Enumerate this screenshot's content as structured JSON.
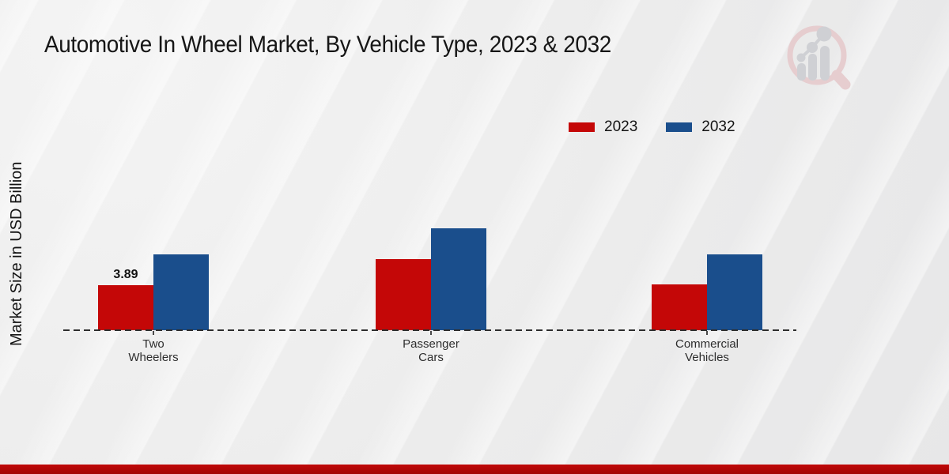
{
  "colors": {
    "background": "#ececec",
    "accent_red": "#c40707",
    "accent_blue": "#1a4e8c"
  },
  "footer": {
    "band_color": "#c00808"
  },
  "watermark": {
    "icon": "magnifier-bar-chart-logo"
  },
  "chart_data": {
    "type": "bar",
    "title": "Automotive In Wheel Market, By Vehicle Type, 2023 & 2032",
    "ylabel": "Market Size in USD Billion",
    "xlabel": "",
    "categories": [
      "Two\nWheelers",
      "Passenger\nCars",
      "Commercial\nVehicles"
    ],
    "series": [
      {
        "name": "2023",
        "color": "#c40707",
        "values": [
          3.89,
          6.14,
          3.96
        ]
      },
      {
        "name": "2032",
        "color": "#1a4e8c",
        "values": [
          6.55,
          8.8,
          6.55
        ]
      }
    ],
    "annotations": [
      {
        "series_index": 0,
        "category_index": 0,
        "text": "3.89"
      }
    ],
    "ylim": [
      0,
      10
    ],
    "grid": false,
    "baseline_style": "dashed",
    "legend_position": "top-right"
  }
}
